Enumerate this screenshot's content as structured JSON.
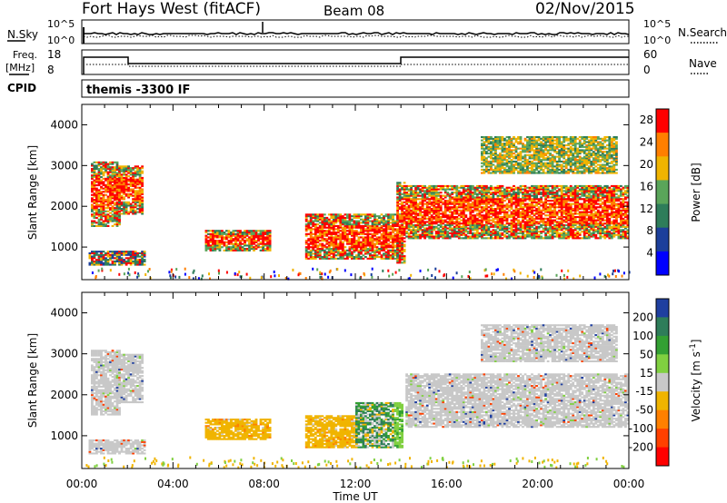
{
  "header": {
    "station": "Fort Hays West (fitACF)",
    "beam": "Beam 08",
    "date": "02/Nov/2015"
  },
  "top_panels": {
    "nsky_label": "N.Sky",
    "nsearch_label": "N.Search",
    "noise_ticks": [
      "10^5",
      "10^0"
    ],
    "freq_label": "Freq.",
    "freq_unit": "[MHz]",
    "freq_ticks": [
      "18",
      "8"
    ],
    "nave_label": "Nave",
    "nave_ticks": [
      "60",
      "0"
    ],
    "cpid_label": "CPID",
    "cpid_value": "themis -3300 IF"
  },
  "chart_data": [
    {
      "type": "heatmap",
      "title": "",
      "quantity": "Power",
      "xlabel": "Time UT",
      "ylabel": "Slant Range [km]",
      "x_ticks": [
        "00:00",
        "04:00",
        "08:00",
        "12:00",
        "16:00",
        "20:00",
        "00:00"
      ],
      "y_ticks": [
        "1000",
        "2000",
        "3000",
        "4000"
      ],
      "xlim_hours": [
        0,
        24
      ],
      "ylim_km": [
        200,
        4500
      ],
      "colorbar": {
        "label": "Power [dB]",
        "ticks": [
          "4",
          "8",
          "12",
          "16",
          "20",
          "24",
          "28"
        ],
        "range": [
          0,
          30
        ],
        "colors": [
          "#0000ff",
          "#1c3f9b",
          "#2e7d5a",
          "#5aa55a",
          "#f0b400",
          "#ff7f00",
          "#ff0000"
        ]
      },
      "echo_regions": [
        {
          "t_start": 0.4,
          "t_end": 1.7,
          "range_low_km": 1500,
          "range_high_km": 3100,
          "level": "high"
        },
        {
          "t_start": 1.5,
          "t_end": 2.7,
          "range_low_km": 1800,
          "range_high_km": 3000,
          "level": "high"
        },
        {
          "t_start": 0.3,
          "t_end": 2.8,
          "range_low_km": 550,
          "range_high_km": 900,
          "level": "mixed"
        },
        {
          "t_start": 5.4,
          "t_end": 8.2,
          "range_low_km": 900,
          "range_high_km": 1400,
          "level": "high"
        },
        {
          "t_start": 9.8,
          "t_end": 14.0,
          "range_low_km": 700,
          "range_high_km": 1800,
          "level": "high"
        },
        {
          "t_start": 13.8,
          "t_end": 14.2,
          "range_low_km": 600,
          "range_high_km": 2600,
          "level": "high"
        },
        {
          "t_start": 14.2,
          "t_end": 24.0,
          "range_low_km": 1200,
          "range_high_km": 2500,
          "level": "high"
        },
        {
          "t_start": 17.5,
          "t_end": 23.5,
          "range_low_km": 2800,
          "range_high_km": 3700,
          "level": "medium"
        }
      ]
    },
    {
      "type": "heatmap",
      "title": "",
      "quantity": "Velocity",
      "xlabel": "Time UT",
      "ylabel": "Slant Range [km]",
      "x_ticks": [
        "00:00",
        "04:00",
        "08:00",
        "12:00",
        "16:00",
        "20:00",
        "00:00"
      ],
      "y_ticks": [
        "1000",
        "2000",
        "3000",
        "4000"
      ],
      "xlim_hours": [
        0,
        24
      ],
      "ylim_km": [
        200,
        4500
      ],
      "colorbar": {
        "label": "Velocity [m s-1]",
        "ticks": [
          "200",
          "100",
          "50",
          "15",
          "-15",
          "-50",
          "-100",
          "-200"
        ],
        "colors": [
          "#1f3fa0",
          "#2e7d5a",
          "#33a033",
          "#80d040",
          "#c8c8c8",
          "#f0b400",
          "#ff8000",
          "#ff4000",
          "#ff0000"
        ]
      },
      "echo_regions": [
        {
          "t_start": 0.4,
          "t_end": 1.7,
          "range_low_km": 1500,
          "range_high_km": 3100,
          "velocity": "ground"
        },
        {
          "t_start": 1.5,
          "t_end": 2.7,
          "range_low_km": 1800,
          "range_high_km": 3000,
          "velocity": "ground"
        },
        {
          "t_start": 0.3,
          "t_end": 2.8,
          "range_low_km": 550,
          "range_high_km": 900,
          "velocity": "ground"
        },
        {
          "t_start": 5.4,
          "t_end": 8.2,
          "range_low_km": 900,
          "range_high_km": 1400,
          "velocity": "-50"
        },
        {
          "t_start": 9.8,
          "t_end": 12.0,
          "range_low_km": 700,
          "range_high_km": 1500,
          "velocity": "-50"
        },
        {
          "t_start": 12.0,
          "t_end": 14.0,
          "range_low_km": 700,
          "range_high_km": 1800,
          "velocity": "positive"
        },
        {
          "t_start": 14.2,
          "t_end": 24.0,
          "range_low_km": 1200,
          "range_high_km": 2500,
          "velocity": "ground"
        },
        {
          "t_start": 17.5,
          "t_end": 23.5,
          "range_low_km": 2800,
          "range_high_km": 3700,
          "velocity": "ground"
        }
      ]
    }
  ]
}
